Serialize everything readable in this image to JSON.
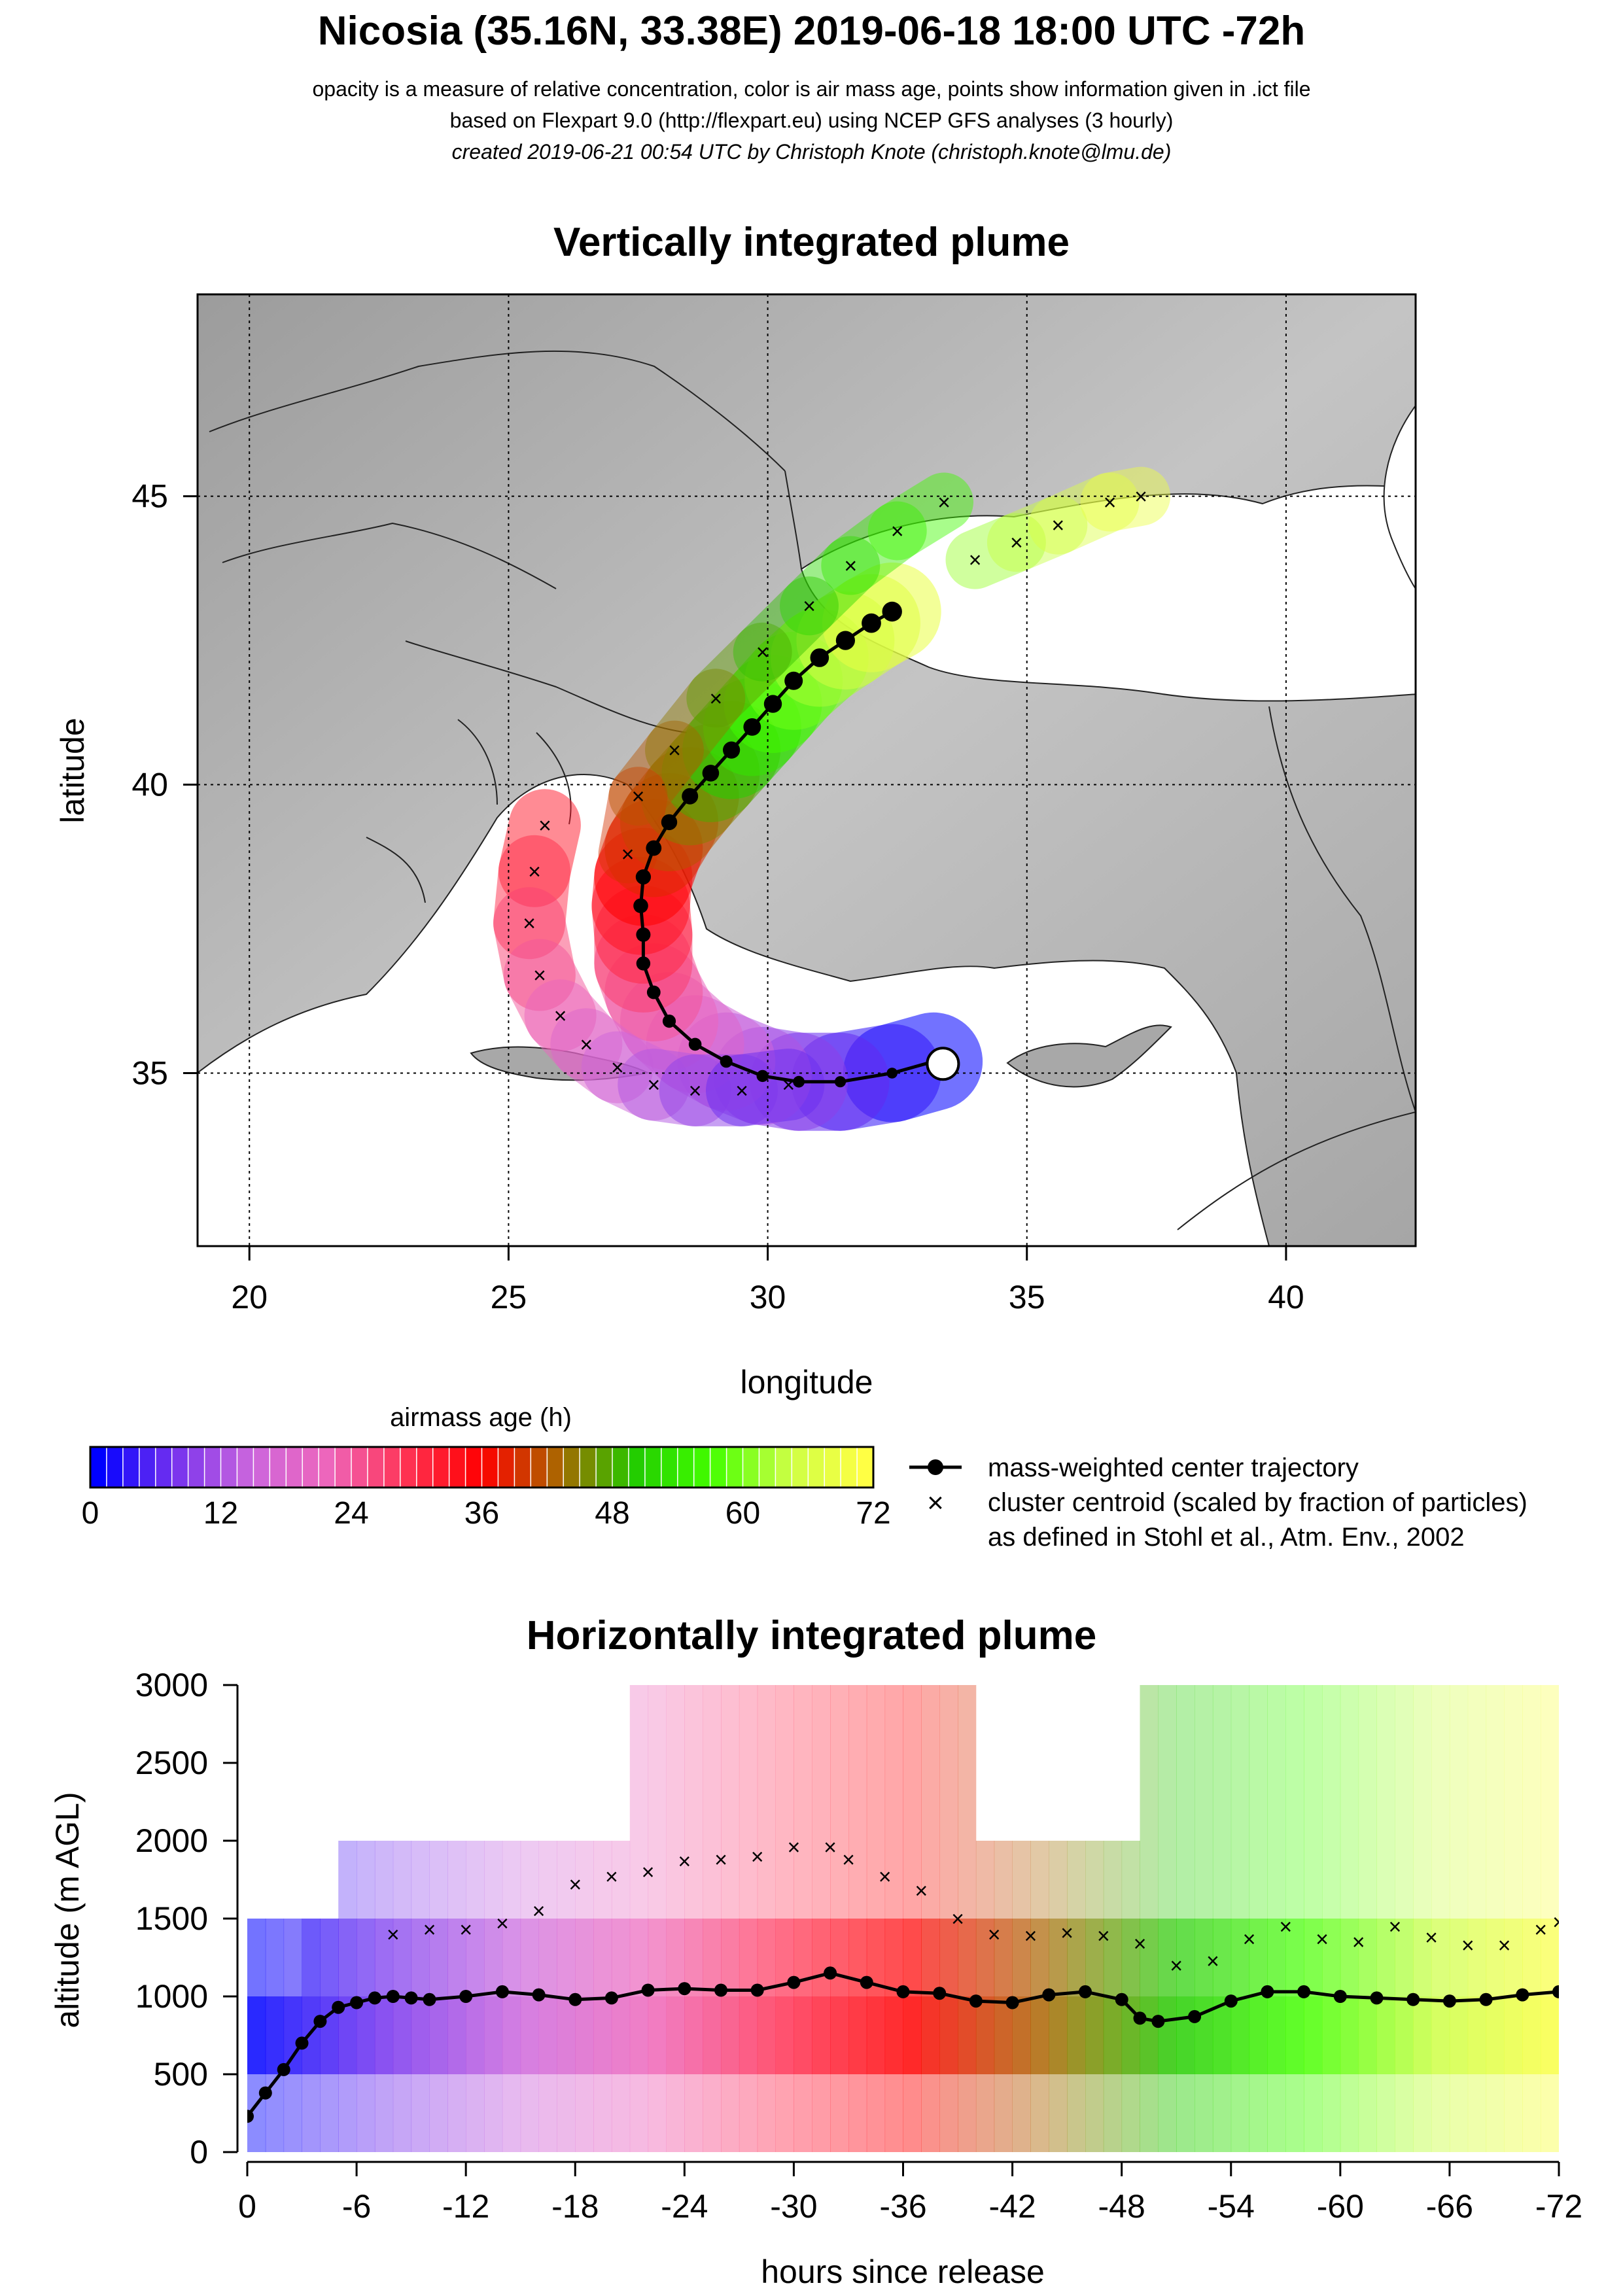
{
  "header": {
    "title": "Nicosia (35.16N, 33.38E) 2019-06-18 18:00 UTC -72h",
    "line1": "opacity is a measure of relative concentration, color is air mass age, points show information given in .ict file",
    "line2": "based on Flexpart 9.0 (http://flexpart.eu) using NCEP GFS analyses (3 hourly)",
    "line3": "created 2019-06-21 00:54 UTC by Christoph Knote (christoph.knote@lmu.de)"
  },
  "colors": {
    "age_scale": [
      "#0000ff",
      "#7733ee",
      "#cc66dd",
      "#ee66bb",
      "#ff3355",
      "#ff0000",
      "#aa6600",
      "#22cc00",
      "#44ff00",
      "#ccff44",
      "#ffff44"
    ],
    "trajectory": "#000000",
    "land": "#b8b8b8",
    "sea": "#ffffff"
  },
  "chart_data": [
    {
      "type": "scatter",
      "title": "Vertically integrated plume",
      "xlabel": "longitude",
      "ylabel": "latitude",
      "xlim": [
        19,
        42.5
      ],
      "ylim": [
        32,
        48.5
      ],
      "xticks": [
        "20",
        "25",
        "30",
        "35",
        "40"
      ],
      "yticks": [
        "35",
        "40",
        "45"
      ],
      "grid": true,
      "release_point": {
        "lon": 33.38,
        "lat": 35.16
      },
      "series": [
        {
          "name": "mass-weighted center trajectory",
          "lon": [
            33.2,
            32.4,
            31.4,
            30.6,
            29.9,
            29.2,
            28.6,
            28.1,
            27.8,
            27.6,
            27.6,
            27.55,
            27.6,
            27.8,
            28.1,
            28.5,
            28.9,
            29.3,
            29.7,
            30.1,
            30.5,
            31.0,
            31.5,
            32.0,
            32.4
          ],
          "lat": [
            35.2,
            35.0,
            34.85,
            34.85,
            34.95,
            35.2,
            35.5,
            35.9,
            36.4,
            36.9,
            37.4,
            37.9,
            38.4,
            38.9,
            39.35,
            39.8,
            40.2,
            40.6,
            41.0,
            41.4,
            41.8,
            42.2,
            42.5,
            42.8,
            43.0
          ]
        },
        {
          "name": "cluster centroid (scaled by fraction of particles)",
          "lon": [
            25.7,
            25.5,
            25.4,
            25.6,
            26.0,
            26.5,
            27.1,
            27.8,
            28.6,
            29.5,
            30.4,
            27.3,
            27.5,
            28.2,
            29.0,
            29.9,
            30.8,
            31.6,
            32.5,
            33.4,
            34.0,
            34.8,
            35.6,
            36.6,
            37.2
          ],
          "lat": [
            39.3,
            38.5,
            37.6,
            36.7,
            36.0,
            35.5,
            35.1,
            34.8,
            34.7,
            34.7,
            34.8,
            38.8,
            39.8,
            40.6,
            41.5,
            42.3,
            43.1,
            43.8,
            44.4,
            44.9,
            43.9,
            44.2,
            44.5,
            44.9,
            45.0
          ]
        }
      ]
    },
    {
      "type": "line",
      "title": "Horizontally integrated plume",
      "xlabel": "hours since release",
      "ylabel": "altitude (m AGL)",
      "xlim": [
        0,
        -72
      ],
      "ylim": [
        0,
        3000
      ],
      "xticks": [
        "0",
        "-6",
        "-12",
        "-18",
        "-24",
        "-30",
        "-36",
        "-42",
        "-48",
        "-54",
        "-60",
        "-66",
        "-72"
      ],
      "yticks": [
        "0",
        "500",
        "1000",
        "1500",
        "2000",
        "2500",
        "3000"
      ],
      "series": [
        {
          "name": "mass-weighted center trajectory",
          "x": [
            0,
            -1,
            -2,
            -3,
            -4,
            -5,
            -6,
            -7,
            -8,
            -9,
            -10,
            -12,
            -14,
            -16,
            -18,
            -20,
            -22,
            -24,
            -26,
            -28,
            -30,
            -32,
            -34,
            -36,
            -38,
            -40,
            -42,
            -44,
            -46,
            -48,
            -49,
            -50,
            -52,
            -54,
            -56,
            -58,
            -60,
            -62,
            -64,
            -66,
            -68,
            -70,
            -72
          ],
          "y": [
            230,
            380,
            530,
            700,
            840,
            930,
            960,
            990,
            1000,
            990,
            980,
            1000,
            1030,
            1010,
            980,
            990,
            1040,
            1050,
            1040,
            1040,
            1090,
            1150,
            1090,
            1030,
            1020,
            970,
            960,
            1010,
            1030,
            980,
            860,
            840,
            870,
            970,
            1030,
            1030,
            1000,
            990,
            980,
            970,
            980,
            1010,
            1030
          ]
        },
        {
          "name": "cluster centroid (scaled by fraction of particles)",
          "x": [
            -8,
            -10,
            -12,
            -14,
            -16,
            -18,
            -20,
            -22,
            -24,
            -26,
            -28,
            -30,
            -32,
            -33,
            -35,
            -37,
            -39,
            -41,
            -43,
            -45,
            -47,
            -49,
            -51,
            -53,
            -55,
            -57,
            -59,
            -61,
            -63,
            -65,
            -67,
            -69,
            -71,
            -72
          ],
          "y": [
            1400,
            1430,
            1430,
            1470,
            1550,
            1720,
            1770,
            1800,
            1870,
            1880,
            1900,
            1960,
            1960,
            1880,
            1770,
            1680,
            1500,
            1400,
            1390,
            1410,
            1390,
            1340,
            1200,
            1230,
            1370,
            1450,
            1370,
            1350,
            1450,
            1380,
            1330,
            1330,
            1430,
            1480
          ]
        }
      ]
    }
  ],
  "legend": {
    "colorbar_title": "airmass age (h)",
    "colorbar_ticks": [
      "0",
      "12",
      "24",
      "36",
      "48",
      "60",
      "72"
    ],
    "center_label": "mass-weighted center trajectory",
    "cluster_label": "cluster centroid (scaled by fraction of particles)",
    "cluster_note": "as defined in Stohl et al., Atm. Env., 2002"
  }
}
